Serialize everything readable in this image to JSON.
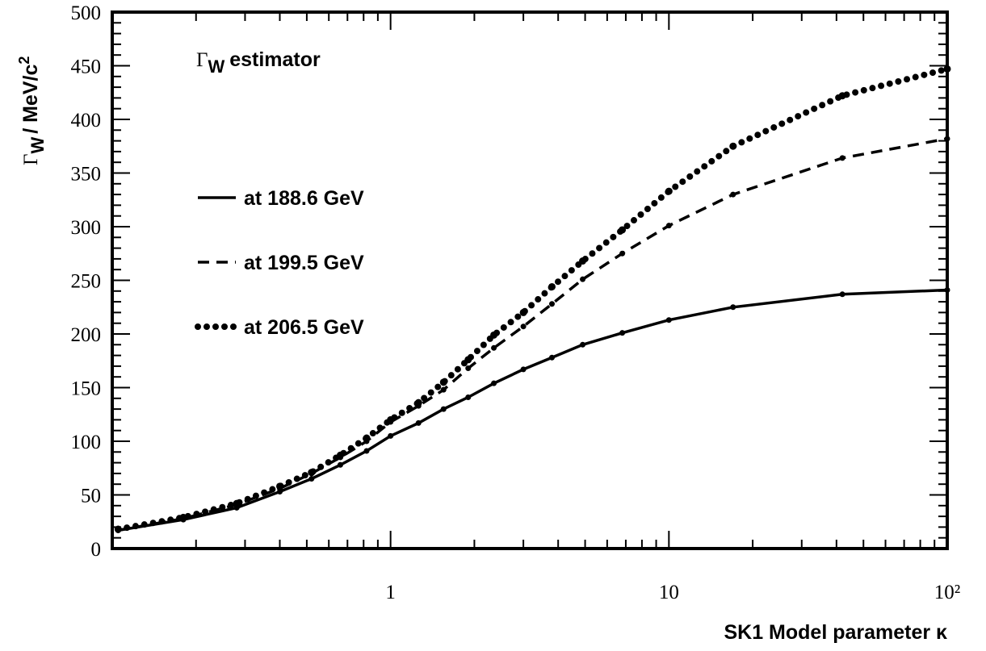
{
  "chart_data": {
    "type": "line",
    "annotation": {
      "symbol": "Γ",
      "sub": "W",
      "text": "estimator"
    },
    "ylabel": {
      "symbol": "Γ",
      "sub": "W",
      "text": "/ MeV/c",
      "sup": "2"
    },
    "xlabel": "SK1 Model parameter κ",
    "log_x": true,
    "xlim": [
      0.1,
      100
    ],
    "xticks": [
      1,
      10,
      {
        "value": 100,
        "label": "10²"
      }
    ],
    "ylim": [
      0,
      500
    ],
    "yticks": [
      0,
      50,
      100,
      150,
      200,
      250,
      300,
      350,
      400,
      450,
      500
    ],
    "x": [
      0.105,
      0.18,
      0.28,
      0.4,
      0.52,
      0.66,
      0.82,
      1.0,
      1.26,
      1.55,
      1.9,
      2.35,
      3.0,
      3.8,
      4.9,
      6.8,
      10,
      17,
      42,
      100
    ],
    "series": [
      {
        "name": "at 188.6 GeV",
        "color": "#000000",
        "style": "solid",
        "values": [
          17,
          27,
          38,
          53,
          65,
          78,
          91,
          105,
          117,
          130,
          141,
          154,
          167,
          178,
          190,
          201,
          213,
          225,
          237,
          241
        ]
      },
      {
        "name": "at 199.5 GeV",
        "color": "#000000",
        "style": "dashed",
        "values": [
          17,
          28,
          41,
          56,
          70,
          85,
          100,
          118,
          133,
          148,
          168,
          187,
          207,
          228,
          251,
          275,
          301,
          330,
          364,
          382
        ]
      },
      {
        "name": "at 206.5 GeV",
        "color": "#000000",
        "style": "dotted",
        "values": [
          18,
          29,
          42,
          58,
          71,
          87,
          103,
          120,
          136,
          155,
          176,
          199,
          220,
          244,
          268,
          297,
          333,
          375,
          422,
          447
        ]
      }
    ]
  }
}
